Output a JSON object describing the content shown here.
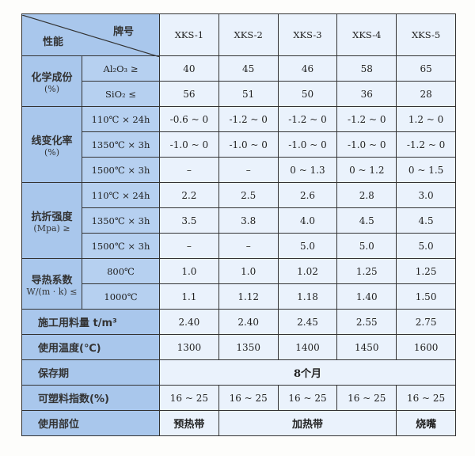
{
  "header": {
    "brand_label": "牌号",
    "property_label": "性能",
    "grades": [
      "XKS-1",
      "XKS-2",
      "XKS-3",
      "XKS-4",
      "XKS-5"
    ]
  },
  "chem": {
    "label": "化学成份",
    "unit": "(%)",
    "rows": [
      {
        "cond": "Al₂O₃ ≥",
        "values": [
          "40",
          "45",
          "46",
          "58",
          "65"
        ]
      },
      {
        "cond": "SiO₂ ≤",
        "values": [
          "56",
          "51",
          "50",
          "36",
          "28"
        ]
      }
    ]
  },
  "linear": {
    "label": "线变化率",
    "unit": "(%)",
    "rows": [
      {
        "cond": "110℃ × 24h",
        "values": [
          "-0.6 ~ 0",
          "-1.2 ~ 0",
          "-1.2 ~ 0",
          "-1.2 ~ 0",
          "1.2 ~ 0"
        ]
      },
      {
        "cond": "1350℃ × 3h",
        "values": [
          "-1.0 ~ 0",
          "-1.0 ~ 0",
          "-1.0 ~ 0",
          "-1.0 ~ 0",
          "-1.2 ~ 0"
        ]
      },
      {
        "cond": "1500℃ × 3h",
        "values": [
          "–",
          "–",
          "0 ~ 1.3",
          "0 ~ 1.2",
          "0 ~ 1.5"
        ]
      }
    ]
  },
  "flex": {
    "label": "抗折强度",
    "unit": "(Mpa) ≥",
    "rows": [
      {
        "cond": "110℃ × 24h",
        "values": [
          "2.2",
          "2.5",
          "2.6",
          "2.8",
          "3.0"
        ]
      },
      {
        "cond": "1350℃ × 3h",
        "values": [
          "3.5",
          "3.8",
          "4.0",
          "4.5",
          "4.5"
        ]
      },
      {
        "cond": "1500℃ × 3h",
        "values": [
          "–",
          "–",
          "5.0",
          "5.0",
          "5.0"
        ]
      }
    ]
  },
  "thermal": {
    "label": "导热系数",
    "unit": "W/(m · k) ≤",
    "rows": [
      {
        "cond": "800℃",
        "values": [
          "1.0",
          "1.0",
          "1.02",
          "1.25",
          "1.25"
        ]
      },
      {
        "cond": "1000℃",
        "values": [
          "1.1",
          "1.12",
          "1.18",
          "1.40",
          "1.50"
        ]
      }
    ]
  },
  "usage": {
    "label": "施工用料量 t/m³",
    "values": [
      "2.40",
      "2.40",
      "2.45",
      "2.55",
      "2.75"
    ]
  },
  "temp": {
    "label": "使用温度(℃)",
    "values": [
      "1300",
      "1350",
      "1400",
      "1450",
      "1600"
    ]
  },
  "shelf": {
    "label": "保存期",
    "value": "8个月"
  },
  "plastic": {
    "label": "可塑料指数(%)",
    "values": [
      "16 ~ 25",
      "16 ~ 25",
      "16 ~ 25",
      "16 ~ 25",
      "16 ~ 25"
    ]
  },
  "location": {
    "label": "使用部位",
    "values": [
      "预热带",
      "加热带",
      "烧嘴"
    ]
  }
}
